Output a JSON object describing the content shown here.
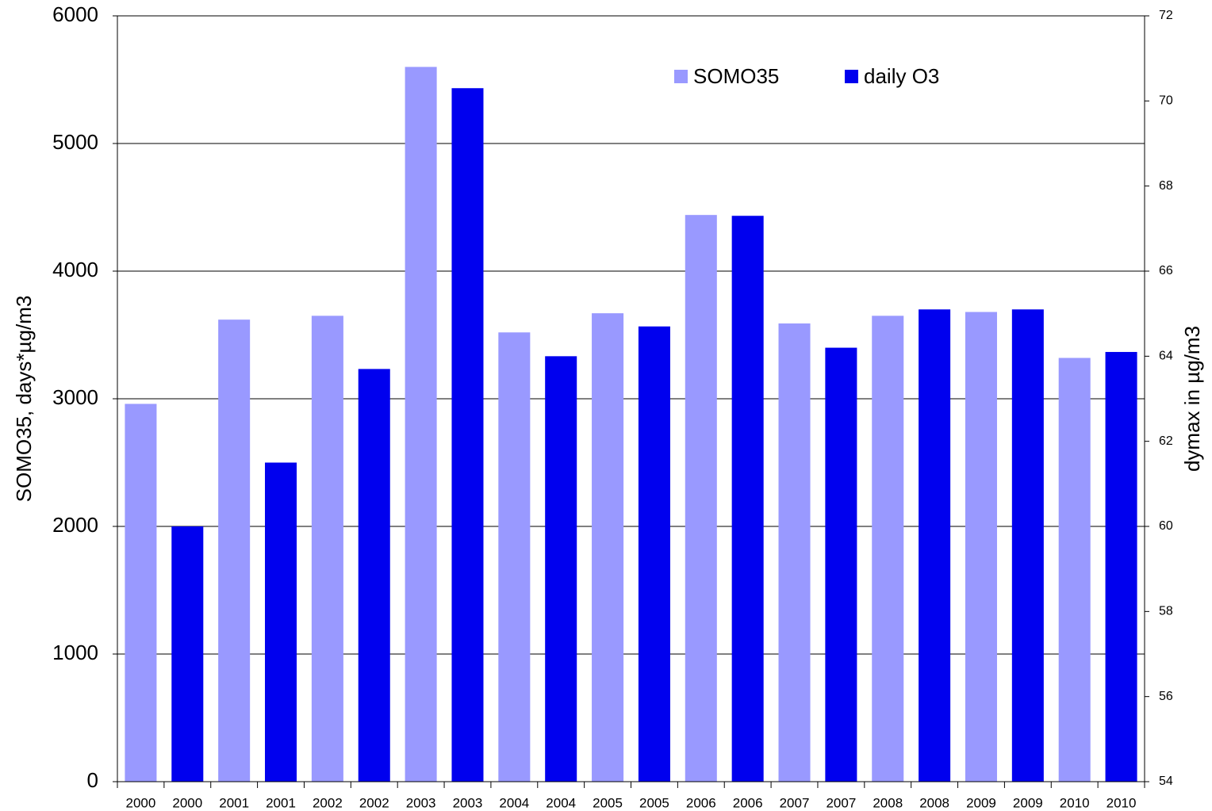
{
  "chart_data": {
    "type": "bar",
    "ylabel": "SOMO35, days*µg/m3",
    "y2label": "dymax in µg/m3",
    "categories": [
      "2000",
      "2000",
      "2001",
      "2001",
      "2002",
      "2002",
      "2003",
      "2003",
      "2004",
      "2004",
      "2005",
      "2005",
      "2006",
      "2006",
      "2007",
      "2007",
      "2008",
      "2008",
      "2009",
      "2009",
      "2010",
      "2010"
    ],
    "series": [
      {
        "name": "SOMO35",
        "color": "#9999ff",
        "values": [
          2960,
          null,
          3620,
          null,
          3650,
          null,
          5600,
          null,
          3520,
          null,
          3670,
          null,
          4440,
          null,
          3590,
          null,
          3650,
          null,
          3680,
          null,
          3320,
          null
        ]
      },
      {
        "name": "daily O3",
        "color": "#0000ee",
        "axis": "y2",
        "values": [
          null,
          60.0,
          null,
          61.5,
          null,
          63.7,
          null,
          70.3,
          null,
          64.0,
          null,
          64.7,
          null,
          67.3,
          null,
          64.2,
          null,
          65.1,
          null,
          65.1,
          null,
          64.1
        ]
      }
    ],
    "ylim": [
      0,
      6000
    ],
    "yticks": [
      0,
      1000,
      2000,
      3000,
      4000,
      5000,
      6000
    ],
    "y2lim": [
      54,
      72
    ],
    "y2ticks": [
      54,
      56,
      58,
      60,
      62,
      64,
      66,
      68,
      70,
      72
    ],
    "grid": true,
    "legend": "top"
  }
}
